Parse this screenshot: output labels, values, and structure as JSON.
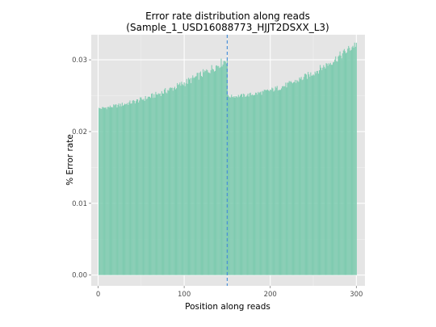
{
  "chart_data": {
    "type": "bar",
    "title": "Error rate distribution along reads",
    "subtitle": "(Sample_1_USD16088773_HJJT2DSXX_L3)",
    "xlabel": "Position along reads",
    "ylabel": "% Error rate",
    "xlim": [
      -8,
      310
    ],
    "ylim": [
      -0.0015,
      0.0335
    ],
    "xticks": [
      0,
      100,
      200,
      300
    ],
    "xtick_labels": [
      "0",
      "100",
      "200",
      "300"
    ],
    "yticks": [
      0.0,
      0.01,
      0.02,
      0.03
    ],
    "ytick_labels": [
      "0.00",
      "0.01",
      "0.02",
      "0.03"
    ],
    "grid": true,
    "legend": "none",
    "vline": {
      "x": 150,
      "style": "dashed",
      "color": "#4a90d9"
    },
    "bar_color": "#7fcbb0",
    "panel_color": "#e5e5e5",
    "positions": {
      "start": 1,
      "end": 300
    },
    "segments": [
      {
        "from": 1,
        "to": 150,
        "start_value": 0.0232,
        "end_value": 0.0301,
        "mid_value": 0.0255
      },
      {
        "from": 151,
        "to": 300,
        "start_value": 0.0249,
        "end_value": 0.0323,
        "mid_value": 0.0268
      }
    ]
  }
}
